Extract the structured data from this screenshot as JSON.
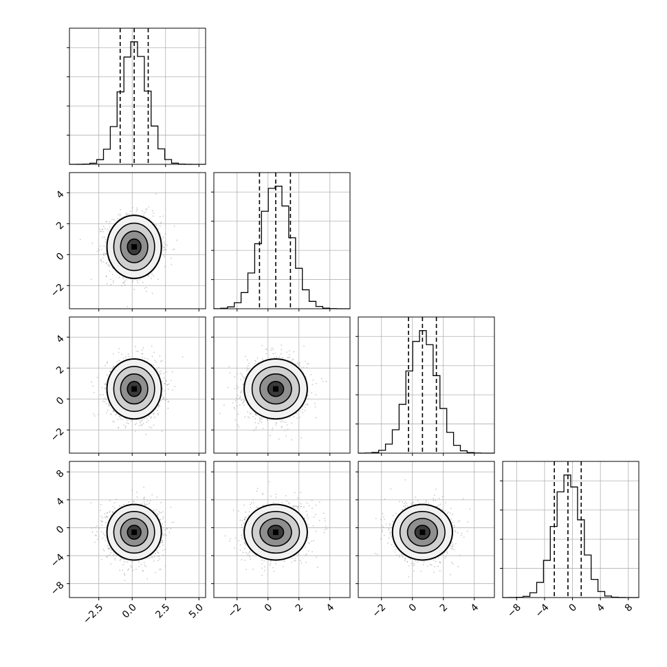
{
  "chart_data": {
    "type": "corner",
    "title": "",
    "n_params": 4,
    "param_labels": [
      "",
      "",
      "",
      ""
    ],
    "style": {
      "hist_color": "#000000",
      "quantile_line_style": "dashed",
      "scatter_color": "#9b9b9b",
      "contour_color": "#000000",
      "grid": true
    },
    "axis_ranges": [
      [
        -4.7,
        5.5
      ],
      [
        -3.5,
        5.3
      ],
      [
        -3.5,
        5.3
      ],
      [
        -10,
        9.5
      ]
    ],
    "ticks": [
      {
        "values": [
          -2.5,
          0.0,
          2.5,
          5.0
        ],
        "labels": [
          "−2.5",
          "0.0",
          "2.5",
          "5.0"
        ]
      },
      {
        "values": [
          -2,
          0,
          2,
          4
        ],
        "labels": [
          "−2",
          "0",
          "2",
          "4"
        ]
      },
      {
        "values": [
          -2,
          0,
          2,
          4
        ],
        "labels": [
          "−2",
          "0",
          "2",
          "4"
        ]
      },
      {
        "values": [
          -8,
          -4,
          0,
          4,
          8
        ],
        "labels": [
          "−8",
          "−4",
          "0",
          "4",
          "8"
        ]
      }
    ],
    "quantiles": [
      {
        "q16": -0.9,
        "q50": 0.15,
        "q84": 1.2
      },
      {
        "q16": -0.55,
        "q50": 0.5,
        "q84": 1.45
      },
      {
        "q16": -0.25,
        "q50": 0.65,
        "q84": 1.55
      },
      {
        "q16": -2.6,
        "q50": -0.65,
        "q84": 1.25
      }
    ],
    "marginals": [
      {
        "mu": 0.15,
        "sigma": 1.0,
        "peak_fraction": 0.9
      },
      {
        "mu": 0.5,
        "sigma": 1.0,
        "peak_fraction": 0.9
      },
      {
        "mu": 0.65,
        "sigma": 0.95,
        "peak_fraction": 0.9
      },
      {
        "mu": -0.65,
        "sigma": 1.95,
        "peak_fraction": 0.9
      }
    ],
    "pairs": [
      {
        "row": 1,
        "col": 0,
        "corr": 0.0
      },
      {
        "row": 2,
        "col": 0,
        "corr": 0.0
      },
      {
        "row": 2,
        "col": 1,
        "corr": 0.05
      },
      {
        "row": 3,
        "col": 0,
        "corr": 0.0
      },
      {
        "row": 3,
        "col": 1,
        "corr": 0.1
      },
      {
        "row": 3,
        "col": 2,
        "corr": 0.0
      }
    ]
  }
}
